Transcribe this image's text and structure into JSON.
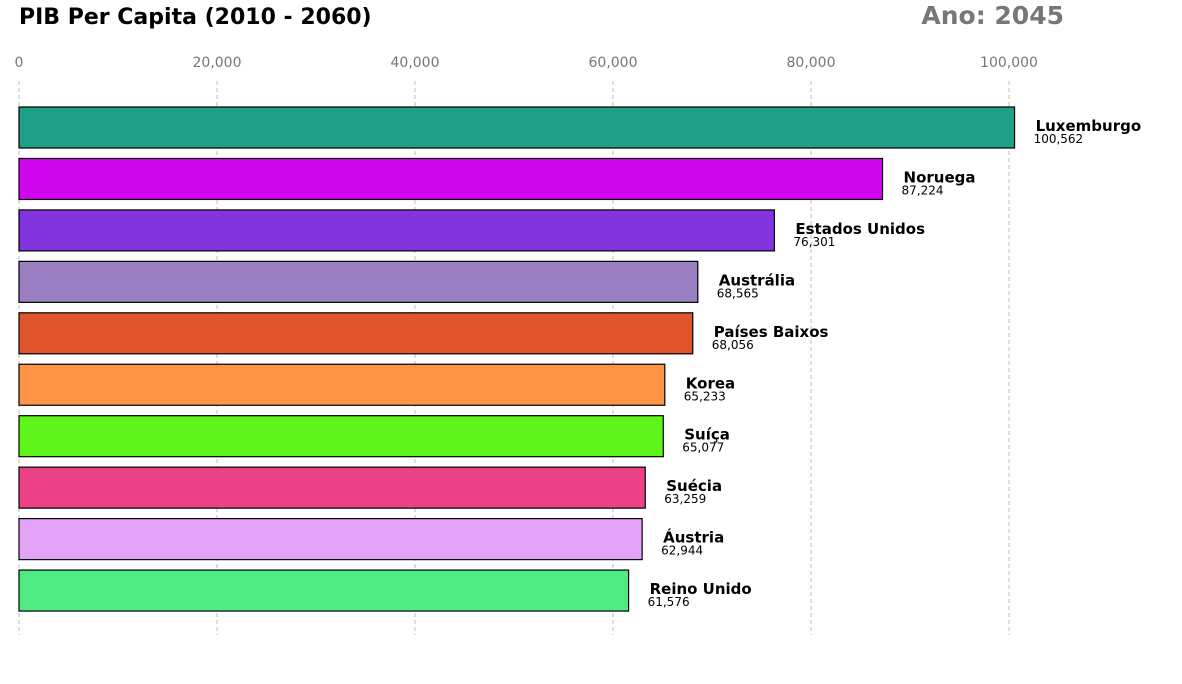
{
  "chart_data": {
    "type": "barh",
    "title": "PIB Per Capita (2010 - 2060)",
    "annotation": "Ano: 2045",
    "categories": [
      "Luxemburgo",
      "Noruega",
      "Estados Unidos",
      "Austrália",
      "Países Baixos",
      "Korea",
      "Suíça",
      "Suécia",
      "Áustria",
      "Reino Unido"
    ],
    "values": [
      100562,
      87224,
      76301,
      68565,
      68056,
      65233,
      65077,
      63259,
      62944,
      61576
    ],
    "value_labels": [
      "100,562",
      "87,224",
      "76,301",
      "68,565",
      "68,056",
      "65,233",
      "65,077",
      "63,259",
      "62,944",
      "61,576"
    ],
    "colors": [
      "#20a087",
      "#d007ee",
      "#8234de",
      "#9b7fc3",
      "#e0542e",
      "#ff9545",
      "#5ef51b",
      "#eb4287",
      "#e2a3f6",
      "#4fea83"
    ],
    "xlim": [
      0,
      110000
    ],
    "xticks": [
      0,
      {
        "value": 20000,
        "label": "20,000"
      },
      {
        "value": 40000,
        "label": "40,000"
      },
      {
        "value": 60000,
        "label": "60,000"
      },
      {
        "value": 80000,
        "label": "80,000"
      },
      {
        "value": 100000,
        "label": "100,000"
      }
    ],
    "grid": true
  }
}
